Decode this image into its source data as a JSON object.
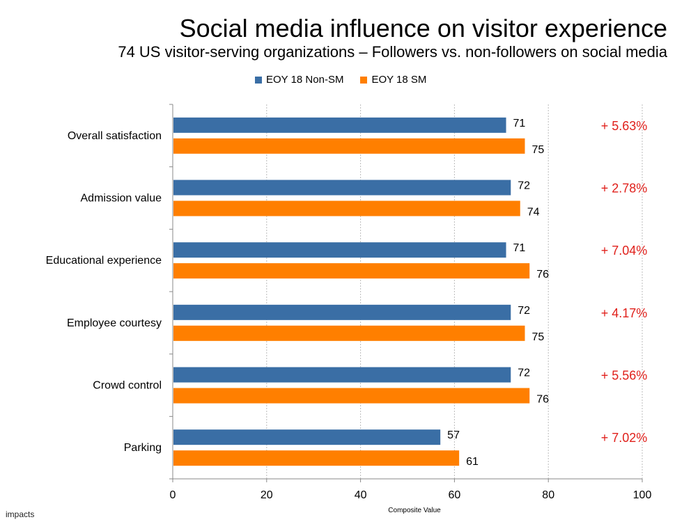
{
  "chart_data": {
    "type": "bar",
    "orientation": "horizontal",
    "title": "Social media influence on visitor experience",
    "subtitle": "74 US visitor-serving organizations – Followers vs. non-followers on social media",
    "categories": [
      "Overall satisfaction",
      "Admission value",
      "Educational experience",
      "Employee courtesy",
      "Crowd control",
      "Parking"
    ],
    "series": [
      {
        "name": "EOY 18 Non-SM",
        "color": "#3a6ea5",
        "values": [
          71,
          72,
          71,
          72,
          72,
          57
        ]
      },
      {
        "name": "EOY 18 SM",
        "color": "#ff7f00",
        "values": [
          75,
          74,
          76,
          75,
          76,
          61
        ]
      }
    ],
    "annotations": [
      "+ 5.63%",
      "+ 2.78%",
      "+ 7.04%",
      "+ 4.17%",
      "+ 5.56%",
      "+ 7.02%"
    ],
    "annotation_color": "#e0201b",
    "xlabel": "Composite Value",
    "xlim": [
      0,
      100
    ],
    "xticks": [
      0,
      20,
      40,
      60,
      80,
      100
    ],
    "grid": true,
    "legend_position": "top"
  },
  "branding": {
    "logo_text": "impacts"
  }
}
